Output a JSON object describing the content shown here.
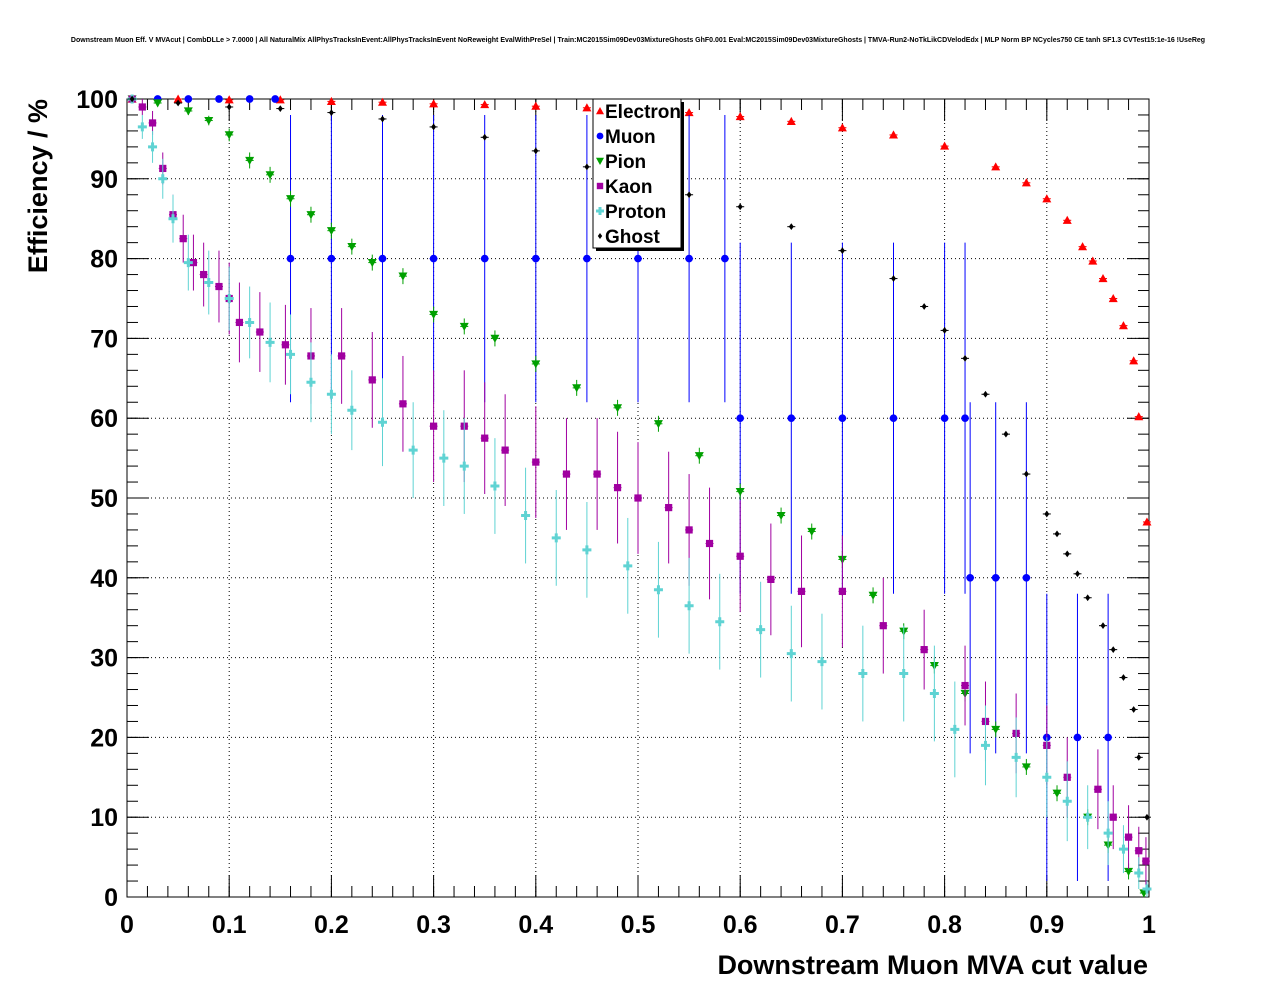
{
  "colors": {
    "Electron": "#ff0000",
    "Muon": "#0000ff",
    "Pion": "#00a000",
    "Kaon": "#a000a0",
    "Proton": "#5fd3d3",
    "Ghost": "#000000"
  },
  "chart_data": {
    "type": "scatter",
    "title": "Downstream Muon Eff. V MVAcut | CombDLLe > 7.0000 | All NaturalMix AllPhysTracksInEvent:AllPhysTracksInEvent NoReweight EvalWithPreSel | Train:MC2015Sim09Dev03MixtureGhosts GhF0.001 Eval:MC2015Sim09Dev03MixtureGhosts | TMVA-Run2-NoTkLikCDVelodEdx | MLP Norm BP NCycles750 CE tanh SF1.3 CVTest15:1e-16 !UseReg",
    "xlabel": "Downstream Muon MVA cut value",
    "ylabel": "Efficiency / %",
    "xlim": [
      0,
      1
    ],
    "ylim": [
      0,
      100
    ],
    "xticks": [
      "0",
      "0.1",
      "0.2",
      "0.3",
      "0.4",
      "0.5",
      "0.6",
      "0.7",
      "0.8",
      "0.9",
      "1"
    ],
    "yticks": [
      "0",
      "10",
      "20",
      "30",
      "40",
      "50",
      "60",
      "70",
      "80",
      "90",
      "100"
    ],
    "grid": true,
    "legend_position": "top-center",
    "series": [
      {
        "name": "Electron",
        "marker": "triangle-up",
        "points": [
          [
            0.005,
            100.0,
            0.0
          ],
          [
            0.05,
            100.0,
            0.0
          ],
          [
            0.1,
            99.9,
            0.0
          ],
          [
            0.15,
            99.9,
            0.0
          ],
          [
            0.2,
            99.7,
            0.0
          ],
          [
            0.25,
            99.6,
            0.0
          ],
          [
            0.3,
            99.4,
            0.0
          ],
          [
            0.35,
            99.3,
            0.0
          ],
          [
            0.4,
            99.1,
            0.0
          ],
          [
            0.45,
            98.9,
            0.0
          ],
          [
            0.5,
            98.7,
            0.0
          ],
          [
            0.55,
            98.3,
            0.0
          ],
          [
            0.6,
            97.8,
            0.0
          ],
          [
            0.65,
            97.2,
            0.0
          ],
          [
            0.7,
            96.4,
            0.0
          ],
          [
            0.75,
            95.5,
            0.0
          ],
          [
            0.8,
            94.1,
            0.0
          ],
          [
            0.85,
            91.5,
            0.0
          ],
          [
            0.88,
            89.5,
            0.0
          ],
          [
            0.9,
            87.5,
            0.0
          ],
          [
            0.92,
            84.8,
            0.0
          ],
          [
            0.935,
            81.5,
            0.0
          ],
          [
            0.945,
            79.7,
            0.0
          ],
          [
            0.955,
            77.5,
            0.0
          ],
          [
            0.965,
            75.0,
            0.0
          ],
          [
            0.975,
            71.6,
            0.0
          ],
          [
            0.985,
            67.2,
            0.0
          ],
          [
            0.99,
            60.2,
            0.0
          ],
          [
            0.998,
            47.0,
            0.0
          ]
        ]
      },
      {
        "name": "Muon",
        "marker": "circle",
        "points": [
          [
            0.005,
            100.0,
            0.0
          ],
          [
            0.03,
            100.0,
            0.0
          ],
          [
            0.06,
            100.0,
            0.0
          ],
          [
            0.09,
            100.0,
            0.0
          ],
          [
            0.12,
            100.0,
            0.0
          ],
          [
            0.145,
            100.0,
            0.0
          ],
          [
            0.16,
            80.0,
            18.0
          ],
          [
            0.2,
            80.0,
            18.0
          ],
          [
            0.25,
            80.0,
            18.0
          ],
          [
            0.3,
            80.0,
            18.0
          ],
          [
            0.35,
            80.0,
            18.0
          ],
          [
            0.4,
            80.0,
            18.0
          ],
          [
            0.45,
            80.0,
            18.0
          ],
          [
            0.5,
            80.0,
            18.0
          ],
          [
            0.55,
            80.0,
            18.0
          ],
          [
            0.585,
            80.0,
            18.0
          ],
          [
            0.6,
            60.0,
            22.0
          ],
          [
            0.65,
            60.0,
            22.0
          ],
          [
            0.7,
            60.0,
            22.0
          ],
          [
            0.75,
            60.0,
            22.0
          ],
          [
            0.8,
            60.0,
            22.0
          ],
          [
            0.82,
            60.0,
            22.0
          ],
          [
            0.825,
            40.0,
            22.0
          ],
          [
            0.85,
            40.0,
            22.0
          ],
          [
            0.88,
            40.0,
            22.0
          ],
          [
            0.9,
            20.0,
            18.0
          ],
          [
            0.93,
            20.0,
            18.0
          ],
          [
            0.96,
            20.0,
            18.0
          ]
        ]
      },
      {
        "name": "Pion",
        "marker": "triangle-down",
        "points": [
          [
            0.005,
            100.0,
            0.0
          ],
          [
            0.03,
            99.5,
            0.3
          ],
          [
            0.06,
            98.5,
            0.5
          ],
          [
            0.08,
            97.3,
            0.6
          ],
          [
            0.1,
            95.5,
            0.8
          ],
          [
            0.12,
            92.3,
            1.0
          ],
          [
            0.14,
            90.5,
            1.0
          ],
          [
            0.16,
            87.5,
            1.0
          ],
          [
            0.18,
            85.5,
            1.0
          ],
          [
            0.2,
            83.5,
            1.0
          ],
          [
            0.22,
            81.5,
            1.0
          ],
          [
            0.24,
            79.5,
            1.0
          ],
          [
            0.27,
            77.8,
            1.0
          ],
          [
            0.3,
            73.0,
            1.0
          ],
          [
            0.33,
            71.5,
            1.0
          ],
          [
            0.36,
            70.0,
            1.0
          ],
          [
            0.4,
            66.8,
            1.0
          ],
          [
            0.44,
            63.8,
            1.0
          ],
          [
            0.48,
            61.3,
            1.0
          ],
          [
            0.52,
            59.3,
            1.0
          ],
          [
            0.56,
            55.3,
            1.0
          ],
          [
            0.6,
            50.8,
            1.0
          ],
          [
            0.64,
            47.8,
            1.0
          ],
          [
            0.67,
            45.8,
            1.0
          ],
          [
            0.7,
            42.3,
            1.0
          ],
          [
            0.73,
            37.8,
            1.0
          ],
          [
            0.76,
            33.3,
            1.0
          ],
          [
            0.79,
            29.0,
            1.0
          ],
          [
            0.82,
            25.5,
            1.0
          ],
          [
            0.85,
            21.0,
            1.0
          ],
          [
            0.88,
            16.3,
            1.0
          ],
          [
            0.91,
            13.0,
            1.0
          ],
          [
            0.94,
            10.0,
            1.0
          ],
          [
            0.96,
            6.5,
            1.0
          ],
          [
            0.98,
            3.2,
            1.0
          ],
          [
            0.995,
            0.5,
            0.5
          ]
        ]
      },
      {
        "name": "Kaon",
        "marker": "square",
        "points": [
          [
            0.005,
            100.0,
            0.0
          ],
          [
            0.015,
            99.0,
            1.0
          ],
          [
            0.025,
            97.0,
            1.5
          ],
          [
            0.035,
            91.3,
            2.0
          ],
          [
            0.045,
            85.5,
            2.5
          ],
          [
            0.055,
            82.5,
            3.0
          ],
          [
            0.065,
            79.5,
            3.5
          ],
          [
            0.075,
            78.0,
            4.0
          ],
          [
            0.09,
            76.5,
            4.5
          ],
          [
            0.1,
            75.0,
            4.5
          ],
          [
            0.11,
            72.0,
            5.0
          ],
          [
            0.13,
            70.8,
            5.0
          ],
          [
            0.155,
            69.2,
            5.0
          ],
          [
            0.18,
            67.8,
            6.0
          ],
          [
            0.21,
            67.8,
            6.0
          ],
          [
            0.24,
            64.8,
            6.0
          ],
          [
            0.27,
            61.8,
            6.0
          ],
          [
            0.3,
            59.0,
            7.0
          ],
          [
            0.33,
            59.0,
            7.0
          ],
          [
            0.35,
            57.5,
            7.0
          ],
          [
            0.37,
            56.0,
            7.0
          ],
          [
            0.4,
            54.5,
            7.0
          ],
          [
            0.43,
            53.0,
            7.0
          ],
          [
            0.46,
            53.0,
            7.0
          ],
          [
            0.48,
            51.3,
            7.0
          ],
          [
            0.5,
            50.0,
            7.0
          ],
          [
            0.53,
            48.8,
            7.0
          ],
          [
            0.55,
            46.0,
            7.0
          ],
          [
            0.57,
            44.3,
            7.0
          ],
          [
            0.6,
            42.7,
            7.0
          ],
          [
            0.63,
            39.8,
            7.0
          ],
          [
            0.66,
            38.3,
            7.0
          ],
          [
            0.7,
            38.3,
            7.0
          ],
          [
            0.74,
            34.0,
            6.0
          ],
          [
            0.78,
            31.0,
            5.0
          ],
          [
            0.82,
            26.5,
            5.0
          ],
          [
            0.84,
            22.0,
            5.0
          ],
          [
            0.87,
            20.5,
            5.0
          ],
          [
            0.9,
            19.0,
            5.0
          ],
          [
            0.92,
            15.0,
            5.0
          ],
          [
            0.95,
            13.5,
            5.0
          ],
          [
            0.965,
            10.0,
            4.0
          ],
          [
            0.98,
            7.5,
            4.0
          ],
          [
            0.99,
            5.8,
            3.0
          ],
          [
            0.997,
            4.5,
            3.0
          ]
        ]
      },
      {
        "name": "Proton",
        "marker": "cross",
        "points": [
          [
            0.005,
            100.0,
            0.0
          ],
          [
            0.015,
            96.5,
            1.5
          ],
          [
            0.025,
            94.0,
            2.0
          ],
          [
            0.035,
            90.0,
            2.5
          ],
          [
            0.045,
            85.0,
            3.0
          ],
          [
            0.06,
            79.5,
            3.5
          ],
          [
            0.08,
            77.0,
            4.0
          ],
          [
            0.1,
            75.0,
            4.0
          ],
          [
            0.12,
            72.0,
            4.5
          ],
          [
            0.14,
            69.5,
            5.0
          ],
          [
            0.16,
            68.0,
            5.0
          ],
          [
            0.18,
            64.5,
            5.0
          ],
          [
            0.2,
            63.0,
            5.0
          ],
          [
            0.22,
            61.0,
            5.0
          ],
          [
            0.25,
            59.5,
            5.5
          ],
          [
            0.28,
            56.0,
            6.0
          ],
          [
            0.31,
            55.0,
            6.0
          ],
          [
            0.33,
            54.0,
            6.0
          ],
          [
            0.36,
            51.5,
            6.0
          ],
          [
            0.39,
            47.8,
            6.0
          ],
          [
            0.42,
            45.0,
            6.0
          ],
          [
            0.45,
            43.5,
            6.0
          ],
          [
            0.49,
            41.5,
            6.0
          ],
          [
            0.52,
            38.5,
            6.0
          ],
          [
            0.55,
            36.5,
            6.0
          ],
          [
            0.58,
            34.5,
            6.0
          ],
          [
            0.62,
            33.5,
            6.0
          ],
          [
            0.65,
            30.5,
            6.0
          ],
          [
            0.68,
            29.5,
            6.0
          ],
          [
            0.72,
            28.0,
            6.0
          ],
          [
            0.76,
            28.0,
            6.0
          ],
          [
            0.79,
            25.5,
            6.0
          ],
          [
            0.81,
            21.0,
            6.0
          ],
          [
            0.84,
            19.0,
            5.0
          ],
          [
            0.87,
            17.5,
            5.0
          ],
          [
            0.9,
            15.0,
            5.0
          ],
          [
            0.92,
            12.0,
            5.0
          ],
          [
            0.94,
            10.0,
            4.0
          ],
          [
            0.96,
            8.0,
            4.0
          ],
          [
            0.975,
            6.0,
            3.0
          ],
          [
            0.99,
            3.0,
            2.0
          ],
          [
            0.998,
            1.0,
            1.0
          ]
        ]
      },
      {
        "name": "Ghost",
        "marker": "diamond",
        "points": [
          [
            0.005,
            100.0,
            0.0
          ],
          [
            0.05,
            99.5,
            0.0
          ],
          [
            0.1,
            99.0,
            0.0
          ],
          [
            0.15,
            98.8,
            0.0
          ],
          [
            0.2,
            98.3,
            0.0
          ],
          [
            0.25,
            97.5,
            0.0
          ],
          [
            0.3,
            96.5,
            0.0
          ],
          [
            0.35,
            95.2,
            0.0
          ],
          [
            0.4,
            93.5,
            0.0
          ],
          [
            0.45,
            91.5,
            0.0
          ],
          [
            0.5,
            89.5,
            0.0
          ],
          [
            0.55,
            88.0,
            0.0
          ],
          [
            0.6,
            86.5,
            0.0
          ],
          [
            0.65,
            84.0,
            0.0
          ],
          [
            0.7,
            81.0,
            0.0
          ],
          [
            0.75,
            77.5,
            0.0
          ],
          [
            0.78,
            74.0,
            0.0
          ],
          [
            0.8,
            71.0,
            0.0
          ],
          [
            0.82,
            67.5,
            0.0
          ],
          [
            0.84,
            63.0,
            0.0
          ],
          [
            0.86,
            58.0,
            0.0
          ],
          [
            0.88,
            53.0,
            0.0
          ],
          [
            0.9,
            48.0,
            0.0
          ],
          [
            0.91,
            45.5,
            0.0
          ],
          [
            0.92,
            43.0,
            0.0
          ],
          [
            0.93,
            40.5,
            0.0
          ],
          [
            0.94,
            37.5,
            0.0
          ],
          [
            0.955,
            34.0,
            0.0
          ],
          [
            0.965,
            31.0,
            0.0
          ],
          [
            0.975,
            27.5,
            0.0
          ],
          [
            0.985,
            23.5,
            0.0
          ],
          [
            0.99,
            17.5,
            0.0
          ],
          [
            0.998,
            10.0,
            0.0
          ]
        ]
      }
    ]
  }
}
